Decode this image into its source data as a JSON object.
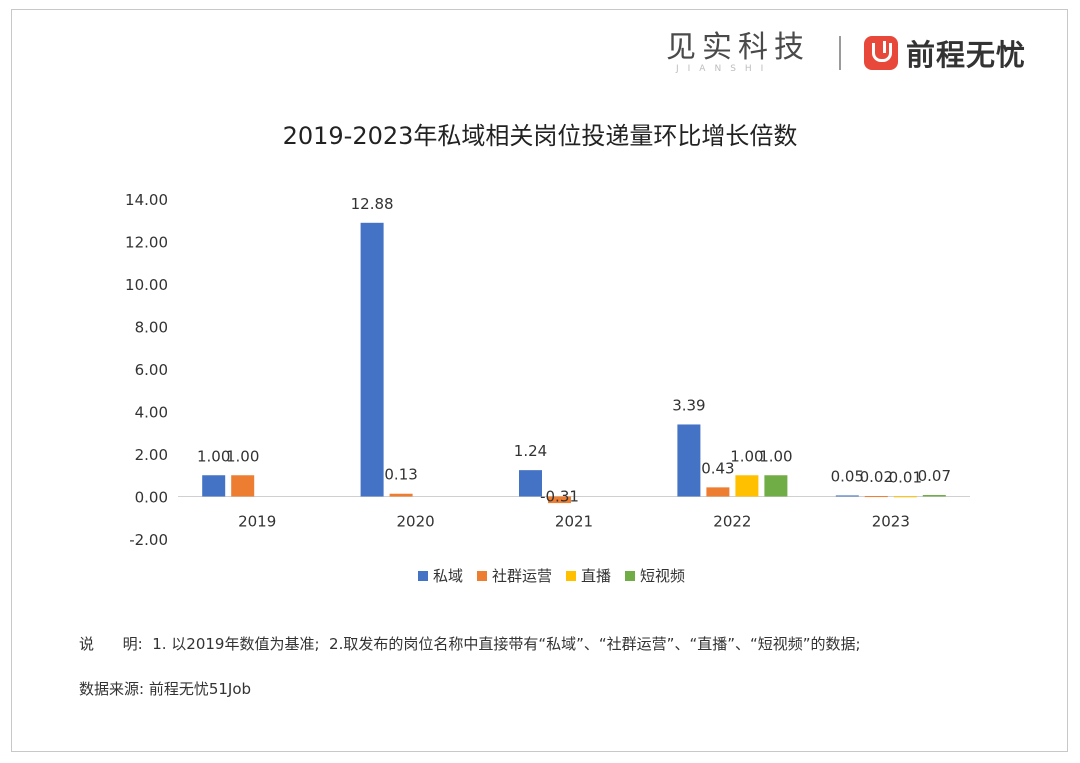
{
  "header": {
    "logo_jianshi_cn": "见实科技",
    "logo_jianshi_en": "JIANSHI",
    "logo_51job_icon": "qiancheng-logo-icon",
    "logo_51job_text": "前程无忧"
  },
  "chart_data": {
    "type": "bar",
    "title": "2019-2023年私域相关岗位投递量环比增长倍数",
    "xlabel": "",
    "ylabel": "",
    "categories": [
      "2019",
      "2020",
      "2021",
      "2022",
      "2023"
    ],
    "ylim": [
      -2,
      14
    ],
    "yticks": [
      "14.00",
      "12.00",
      "10.00",
      "8.00",
      "6.00",
      "4.00",
      "2.00",
      "0.00",
      "-2.00"
    ],
    "ytick_values": [
      14,
      12,
      10,
      8,
      6,
      4,
      2,
      0,
      -2
    ],
    "grid": false,
    "legend_position": "bottom",
    "series": [
      {
        "name": "私域",
        "color": "#4472c4",
        "values": [
          1.0,
          12.88,
          1.24,
          3.39,
          0.05
        ],
        "labels": [
          "1.00",
          "12.88",
          "1.24",
          "3.39",
          "0.05"
        ]
      },
      {
        "name": "社群运营",
        "color": "#ed7d31",
        "values": [
          1.0,
          0.13,
          -0.31,
          0.43,
          0.02
        ],
        "labels": [
          "1.00",
          "0.13",
          "-0.31",
          "0.43",
          "0.02"
        ]
      },
      {
        "name": "直播",
        "color": "#ffc000",
        "values": [
          null,
          null,
          null,
          1.0,
          0.01
        ],
        "labels": [
          "",
          "",
          "",
          "1.00",
          "0.01"
        ]
      },
      {
        "name": "短视频",
        "color": "#70ad47",
        "values": [
          null,
          null,
          null,
          1.0,
          0.07
        ],
        "labels": [
          "",
          "",
          "",
          "1.00",
          "0.07"
        ]
      }
    ]
  },
  "footer": {
    "note": "说      明:  1. 以2019年数值为基准;  2.取发布的岗位名称中直接带有“私域”、“社群运营”、“直播”、“短视频”的数据;",
    "source": "数据来源: 前程无忧51Job"
  }
}
